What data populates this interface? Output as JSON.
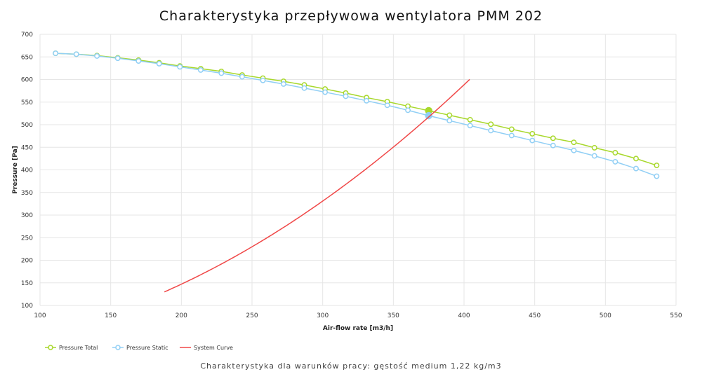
{
  "chart_data": {
    "type": "line",
    "title": "Charakterystyka przepływowa wentylatora PMM 202",
    "xlabel": "Air-flow rate [m3/h]",
    "ylabel": "Pressure [Pa]",
    "xlim": [
      100,
      550
    ],
    "ylim": [
      100,
      700
    ],
    "xticks": [
      100,
      150,
      200,
      250,
      300,
      350,
      400,
      450,
      500,
      550
    ],
    "yticks": [
      100,
      150,
      200,
      250,
      300,
      350,
      400,
      450,
      500,
      550,
      600,
      650,
      700
    ],
    "grid": true,
    "legend_position": "bottom-left",
    "x": [
      111,
      125.7,
      140.3,
      155,
      169.7,
      184.3,
      199,
      213.7,
      228.3,
      243,
      257.7,
      272.3,
      287,
      301.7,
      316.3,
      331,
      345.7,
      360.3,
      375,
      389.7,
      404.3,
      419,
      433.7,
      448.3,
      463,
      477.7,
      492.3,
      507,
      521.7,
      536.3
    ],
    "series": [
      {
        "name": "Pressure Total",
        "color": "#a8d82c",
        "values": [
          658,
          656,
          653,
          648,
          643,
          637,
          630,
          624,
          618,
          610,
          603,
          596,
          588,
          579,
          570,
          560,
          551,
          541,
          531,
          521,
          511,
          501,
          490,
          480,
          470,
          461,
          449,
          438,
          425,
          410
        ],
        "highlight_index": 18
      },
      {
        "name": "Pressure Static",
        "color": "#91cff5",
        "values": [
          658,
          656,
          652,
          647,
          641,
          635,
          628,
          621,
          614,
          606,
          598,
          590,
          581,
          572,
          563,
          553,
          543,
          532,
          520,
          509,
          498,
          487,
          476,
          465,
          454,
          443,
          431,
          418,
          403,
          386
        ],
        "highlight_index": 18
      },
      {
        "name": "System Curve",
        "color": "#f04848",
        "type": "curve",
        "x_range": [
          188,
          405
        ],
        "coefficient": 0.003677
      }
    ]
  },
  "caption": "Charakterystyka dla warunków pracy: gęstość medium 1,22 kg/m3"
}
